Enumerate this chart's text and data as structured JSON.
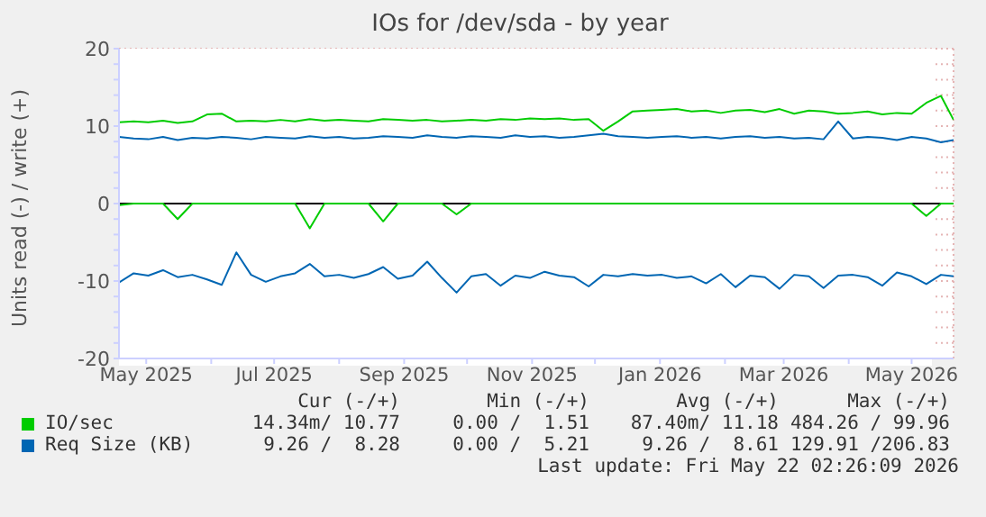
{
  "chart_data": {
    "type": "line",
    "title": "IOs for /dev/sda - by year",
    "ylabel": "Units read (-) / write (+)",
    "x": [
      "2025-04-18",
      "2025-04-25",
      "2025-05-02",
      "2025-05-09",
      "2025-05-16",
      "2025-05-23",
      "2025-05-30",
      "2025-06-06",
      "2025-06-13",
      "2025-06-20",
      "2025-06-27",
      "2025-07-04",
      "2025-07-11",
      "2025-07-18",
      "2025-07-25",
      "2025-08-01",
      "2025-08-08",
      "2025-08-15",
      "2025-08-22",
      "2025-08-29",
      "2025-09-05",
      "2025-09-12",
      "2025-09-19",
      "2025-09-26",
      "2025-10-03",
      "2025-10-10",
      "2025-10-17",
      "2025-10-24",
      "2025-10-31",
      "2025-11-07",
      "2025-11-14",
      "2025-11-21",
      "2025-11-28",
      "2025-12-05",
      "2025-12-12",
      "2025-12-19",
      "2025-12-26",
      "2026-01-02",
      "2026-01-09",
      "2026-01-16",
      "2026-01-23",
      "2026-01-30",
      "2026-02-06",
      "2026-02-13",
      "2026-02-20",
      "2026-02-27",
      "2026-03-06",
      "2026-03-13",
      "2026-03-20",
      "2026-03-27",
      "2026-04-03",
      "2026-04-10",
      "2026-04-17",
      "2026-04-24",
      "2026-05-01",
      "2026-05-08",
      "2026-05-15",
      "2026-05-21"
    ],
    "series": [
      {
        "name": "IO/sec",
        "color": "#00cc00",
        "values": [
          10.5,
          10.6,
          10.5,
          10.7,
          10.4,
          10.6,
          11.5,
          11.6,
          10.6,
          10.7,
          10.6,
          10.8,
          10.6,
          10.9,
          10.7,
          10.8,
          10.7,
          10.6,
          10.9,
          10.8,
          10.7,
          10.8,
          10.6,
          10.7,
          10.8,
          10.7,
          10.9,
          10.8,
          11.0,
          10.9,
          11.0,
          10.8,
          10.9,
          9.4,
          10.6,
          11.9,
          12.0,
          12.1,
          12.2,
          11.9,
          12.0,
          11.7,
          12.0,
          12.1,
          11.8,
          12.2,
          11.6,
          12.0,
          11.9,
          11.6,
          11.7,
          11.9,
          11.5,
          11.7,
          11.6,
          13.0,
          13.9,
          10.8
        ]
      },
      {
        "color": "#00cc00",
        "values": [
          -0.2,
          0,
          0,
          0,
          -2.0,
          0,
          0,
          0,
          0,
          0,
          0,
          0,
          0,
          -3.2,
          0,
          0,
          0,
          0,
          -2.3,
          0,
          0,
          0,
          0,
          -1.4,
          0,
          0,
          0,
          0,
          0,
          0,
          0,
          0,
          0,
          0,
          0,
          0,
          0,
          0,
          0,
          0,
          0,
          0,
          0,
          0,
          0,
          0,
          0,
          0,
          0,
          0,
          0,
          0,
          0,
          0,
          0,
          -1.6,
          0,
          0
        ]
      },
      {
        "name": "Req Size (KB)",
        "color": "#0066b3",
        "values": [
          8.6,
          8.4,
          8.3,
          8.6,
          8.2,
          8.5,
          8.4,
          8.6,
          8.5,
          8.3,
          8.6,
          8.5,
          8.4,
          8.7,
          8.5,
          8.6,
          8.4,
          8.5,
          8.7,
          8.6,
          8.5,
          8.8,
          8.6,
          8.5,
          8.7,
          8.6,
          8.5,
          8.8,
          8.6,
          8.7,
          8.5,
          8.6,
          8.8,
          9.0,
          8.7,
          8.6,
          8.5,
          8.6,
          8.7,
          8.5,
          8.6,
          8.4,
          8.6,
          8.7,
          8.5,
          8.6,
          8.4,
          8.5,
          8.3,
          10.6,
          8.4,
          8.6,
          8.5,
          8.2,
          8.6,
          8.4,
          7.9,
          8.2
        ]
      },
      {
        "color": "#0066b3",
        "values": [
          -10.2,
          -9.0,
          -9.3,
          -8.6,
          -9.5,
          -9.2,
          -9.8,
          -10.5,
          -6.3,
          -9.2,
          -10.1,
          -9.4,
          -9.0,
          -7.8,
          -9.4,
          -9.2,
          -9.6,
          -9.1,
          -8.2,
          -9.7,
          -9.3,
          -7.5,
          -9.6,
          -11.5,
          -9.4,
          -9.1,
          -10.6,
          -9.3,
          -9.6,
          -8.8,
          -9.3,
          -9.5,
          -10.7,
          -9.2,
          -9.4,
          -9.1,
          -9.3,
          -9.2,
          -9.6,
          -9.4,
          -10.3,
          -9.1,
          -10.8,
          -9.3,
          -9.5,
          -11.0,
          -9.2,
          -9.4,
          -10.9,
          -9.3,
          -9.2,
          -9.5,
          -10.6,
          -8.9,
          -9.4,
          -10.4,
          -9.2,
          -9.4
        ]
      }
    ],
    "xlim": [
      "2025-04-18",
      "2026-05-21"
    ],
    "xticks": [
      {
        "value": "2025-05-01",
        "label": "May 2025"
      },
      {
        "value": "2025-06-01",
        "label": null
      },
      {
        "value": "2025-07-01",
        "label": "Jul 2025"
      },
      {
        "value": "2025-08-01",
        "label": null
      },
      {
        "value": "2025-09-01",
        "label": "Sep 2025"
      },
      {
        "value": "2025-10-01",
        "label": null
      },
      {
        "value": "2025-11-01",
        "label": "Nov 2025"
      },
      {
        "value": "2025-12-01",
        "label": null
      },
      {
        "value": "2026-01-01",
        "label": "Jan 2026"
      },
      {
        "value": "2026-02-01",
        "label": null
      },
      {
        "value": "2026-03-01",
        "label": "Mar 2026"
      },
      {
        "value": "2026-04-01",
        "label": null
      },
      {
        "value": "2026-05-01",
        "label": "May 2026"
      }
    ],
    "ylim": [
      -20,
      20
    ],
    "yticks": [
      -20,
      {
        "value": -18,
        "label": null
      },
      {
        "value": -16,
        "label": null
      },
      {
        "value": -14,
        "label": null
      },
      {
        "value": -12,
        "label": null
      },
      -10,
      {
        "value": -8,
        "label": null
      },
      {
        "value": -6,
        "label": null
      },
      {
        "value": -4,
        "label": null
      },
      {
        "value": -2,
        "label": null
      },
      0,
      {
        "value": 2,
        "label": null
      },
      {
        "value": 4,
        "label": null
      },
      {
        "value": 6,
        "label": null
      },
      {
        "value": 8,
        "label": null
      },
      10,
      {
        "value": 12,
        "label": null
      },
      {
        "value": 14,
        "label": null
      },
      {
        "value": 16,
        "label": null
      },
      {
        "value": 18,
        "label": null
      },
      20
    ],
    "ref_lines": [
      {
        "axis": "y",
        "value": 0,
        "color": "#000000"
      }
    ],
    "grid": true,
    "legend": "bottom",
    "marker": "none",
    "line_style": "solid",
    "annotations": [
      "Cur (-/+)",
      "Min (-/+)",
      "Avg (-/+)",
      "Max (-/+)",
      "14.34m/ 10.77",
      "0.00 /  1.51",
      "87.40m/ 11.18",
      "484.26 / 99.96",
      "9.26 /  8.28",
      "0.00 /  5.21",
      "9.26 /  8.61",
      "129.91 /206.83",
      "Last update: Fri May 22 02:26:09 2026"
    ]
  }
}
